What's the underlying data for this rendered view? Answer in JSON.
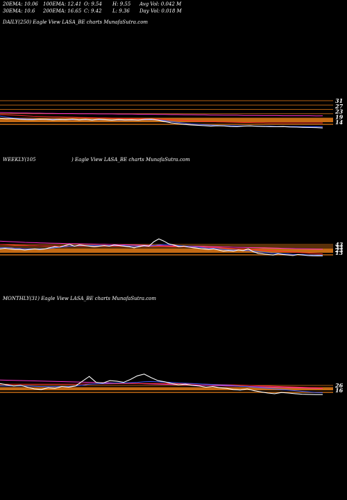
{
  "header": {
    "ema20": "20EMA: 10.06",
    "ema100": "100EMA: 12.41",
    "open": "O: 9.54",
    "high": "H: 9.55",
    "avg_vol": "Avg Vol: 0.042  M",
    "ema30": "30EMA: 10.6",
    "ema200": "200EMA: 16.65",
    "close": "C: 9.42",
    "low": "L: 9.36",
    "day_vol": "Day Vol: 0.018  M"
  },
  "panels": [
    {
      "title": "DAILY(250) Eagle   View  LASA_BE charts MunafaSutra.com"
    },
    {
      "title": "WEEKLY(105",
      "title_right": ") Eagle   View  LASA_BE charts MunafaSutra.com"
    },
    {
      "title": "MONTHLY(31) Eagle   View  LASA_BE charts MunafaSutra.com"
    }
  ],
  "colors": {
    "price": "#ffffff",
    "ema_blue": "#3b5bff",
    "ema_red": "#ff2a2a",
    "ema_magenta": "#ff33cc",
    "ema_orange": "#e07a1a",
    "band": "#c46a14",
    "level_text": "#ffffff"
  },
  "chart_data": [
    {
      "type": "line",
      "name": "daily",
      "level_labels": [
        "31",
        "27",
        "23",
        "19",
        "14"
      ],
      "series": [
        {
          "color_key": "price",
          "values": [
            15.2,
            14.9,
            15.1,
            14.6,
            14.4,
            14.3,
            14.6,
            14.5,
            14.2,
            14.4,
            14.3,
            14.7,
            14.2,
            14.5,
            14.1,
            14.6,
            14.3,
            14.0,
            14.4,
            14.2,
            14.3,
            14.1,
            14.5,
            14.6,
            14.0,
            13.2,
            12.4,
            12.0,
            11.5,
            11.2,
            11.0,
            10.8,
            10.5,
            10.7,
            10.6,
            10.3,
            10.2,
            10.5,
            10.6,
            10.4,
            10.3,
            10.2,
            10.1,
            10.2,
            10.0,
            9.9,
            9.8,
            9.7,
            9.6,
            9.42
          ]
        },
        {
          "color_key": "ema_blue",
          "values": [
            16.5,
            15.8,
            15.3,
            15.0,
            14.8,
            14.7,
            14.6,
            14.6,
            14.5,
            14.5,
            14.4,
            14.4,
            14.4,
            14.3,
            14.3,
            14.3,
            14.3,
            14.2,
            14.2,
            14.2,
            14.2,
            14.2,
            14.3,
            14.3,
            14.2,
            13.8,
            13.2,
            12.7,
            12.3,
            11.9,
            11.6,
            11.3,
            11.1,
            10.9,
            10.8,
            10.7,
            10.6,
            10.6,
            10.6,
            10.5,
            10.4,
            10.4,
            10.3,
            10.3,
            10.2,
            10.2,
            10.1,
            10.1,
            10.1,
            10.06
          ]
        },
        {
          "color_key": "ema_red",
          "values": [
            17.5,
            17.2,
            17.0,
            16.8,
            16.6,
            16.4,
            16.3,
            16.2,
            16.1,
            16.0,
            15.9,
            15.8,
            15.7,
            15.6,
            15.5,
            15.4,
            15.4,
            15.3,
            15.2,
            15.1,
            15.0,
            14.9,
            14.9,
            14.8,
            14.7,
            14.5,
            14.3,
            14.1,
            13.9,
            13.7,
            13.5,
            13.3,
            13.2,
            13.0,
            12.9,
            12.8,
            12.7,
            12.6,
            12.6,
            12.5,
            12.5,
            12.4,
            12.4,
            12.4,
            12.4,
            12.4,
            12.4,
            12.4,
            12.4,
            12.41
          ]
        },
        {
          "color_key": "ema_magenta",
          "values": [
            18.6,
            18.5,
            18.4,
            18.3,
            18.3,
            18.2,
            18.2,
            18.1,
            18.1,
            18.0,
            18.0,
            18.0,
            17.9,
            17.9,
            17.9,
            17.8,
            17.8,
            17.8,
            17.7,
            17.7,
            17.7,
            17.6,
            17.6,
            17.6,
            17.5,
            17.5,
            17.4,
            17.4,
            17.3,
            17.3,
            17.2,
            17.2,
            17.1,
            17.1,
            17.0,
            17.0,
            17.0,
            16.9,
            16.9,
            16.9,
            16.8,
            16.8,
            16.8,
            16.7,
            16.7,
            16.7,
            16.7,
            16.7,
            16.6,
            16.65
          ]
        }
      ],
      "y_range": [
        7,
        34
      ]
    },
    {
      "type": "line",
      "name": "weekly",
      "level_labels": [
        "43",
        "33",
        "23",
        "13"
      ],
      "series": [
        {
          "color_key": "price",
          "values": [
            22,
            23,
            22,
            21,
            21,
            20,
            21,
            22,
            21,
            22,
            24,
            26,
            25,
            28,
            30,
            27,
            29,
            28,
            27,
            26,
            27,
            28,
            27,
            29,
            28,
            27,
            26,
            24,
            26,
            28,
            27,
            35,
            40,
            36,
            31,
            29,
            26,
            27,
            25,
            24,
            23,
            22,
            21,
            22,
            20,
            18,
            19,
            18,
            20,
            19,
            22,
            17,
            14,
            13,
            12,
            11,
            13,
            12,
            11,
            10,
            12,
            11,
            10,
            9.6,
            9.5,
            9.42
          ]
        },
        {
          "color_key": "ema_blue",
          "values": [
            24,
            24,
            24,
            23,
            23,
            22,
            22,
            22,
            22,
            22,
            23,
            24,
            25,
            26,
            27,
            27,
            28,
            28,
            28,
            28,
            28,
            28,
            28,
            28,
            28,
            28,
            27,
            27,
            27,
            27,
            27,
            28,
            29,
            30,
            30,
            29,
            28,
            27,
            27,
            26,
            25,
            24,
            23,
            23,
            22,
            21,
            20,
            20,
            20,
            19,
            19,
            18,
            17,
            16,
            15,
            14,
            14,
            13,
            13,
            12,
            12,
            12,
            11,
            11,
            10.8,
            10.6
          ]
        },
        {
          "color_key": "ema_red",
          "values": [
            30,
            29.6,
            29.2,
            28.8,
            28.5,
            28.2,
            27.9,
            27.7,
            27.5,
            27.3,
            27.2,
            27.1,
            27.0,
            27.0,
            27.0,
            27.0,
            27.0,
            27.0,
            27.0,
            26.9,
            26.9,
            26.9,
            26.9,
            26.9,
            26.9,
            26.8,
            26.8,
            26.7,
            26.6,
            26.5,
            26.4,
            26.4,
            26.5,
            26.5,
            26.4,
            26.3,
            26.1,
            25.9,
            25.7,
            25.4,
            25.1,
            24.8,
            24.5,
            24.2,
            23.9,
            23.5,
            23.1,
            22.7,
            22.3,
            21.9,
            21.5,
            21.0,
            20.4,
            19.8,
            19.2,
            18.6,
            18.0,
            17.4,
            16.8,
            16.2,
            15.6,
            15.0,
            14.5,
            14.0,
            13.5,
            13.0
          ]
        },
        {
          "color_key": "ema_magenta",
          "values": [
            36,
            35.5,
            35,
            34.6,
            34.2,
            33.8,
            33.5,
            33.2,
            32.9,
            32.6,
            32.4,
            32.2,
            32,
            31.8,
            31.6,
            31.4,
            31.2,
            31,
            30.8,
            30.6,
            30.4,
            30.2,
            30,
            29.8,
            29.6,
            29.4,
            29.2,
            29,
            28.8,
            28.6,
            28.4,
            28.2,
            28,
            27.8,
            27.6,
            27.4,
            27.2,
            27,
            26.8,
            26.6,
            26.4,
            26.2,
            26,
            25.8,
            25.6,
            25.4,
            25.2,
            25,
            24.8,
            24.6,
            24.4,
            24.2,
            24,
            23.8,
            23.6,
            23.4,
            23.2,
            23,
            22.8,
            22.6,
            22.4,
            22.2,
            22,
            21.8,
            21.6,
            21.4
          ]
        }
      ],
      "y_range": [
        5,
        70
      ]
    },
    {
      "type": "line",
      "name": "monthly",
      "level_labels": [
        "26",
        "16"
      ],
      "series": [
        {
          "color_key": "price",
          "values": [
            28,
            26,
            24,
            25,
            22,
            19,
            18,
            21,
            20,
            23,
            22,
            24,
            32,
            40,
            30,
            29,
            33,
            32,
            30,
            35,
            41,
            44,
            38,
            33,
            31,
            28,
            26,
            27,
            25,
            24,
            22,
            23,
            21,
            20,
            18,
            17,
            19,
            16,
            14,
            12,
            11,
            13,
            12,
            11,
            10,
            9.8,
            9.5,
            9.42
          ]
        },
        {
          "color_key": "ema_blue",
          "values": [
            24,
            24,
            24,
            24,
            24,
            23.5,
            23,
            23,
            23,
            23,
            23,
            24,
            25,
            27,
            27.5,
            28,
            28.5,
            29,
            29,
            29.5,
            30,
            31,
            31.5,
            31,
            30.5,
            30,
            29,
            28.5,
            28,
            27.5,
            27,
            26.5,
            26,
            25.5,
            24.5,
            23.5,
            23,
            22,
            21,
            20,
            19,
            18,
            17,
            16,
            15,
            14,
            13,
            12.5
          ]
        },
        {
          "color_key": "ema_red",
          "values": [
            27,
            27,
            27,
            27,
            27,
            27,
            27,
            27,
            27,
            27,
            27,
            27,
            27.2,
            27.4,
            27.5,
            27.6,
            27.7,
            27.8,
            27.9,
            28,
            28,
            28.1,
            28.2,
            28.2,
            28.1,
            28,
            27.8,
            27.6,
            27.4,
            27.2,
            27,
            26.7,
            26.4,
            26.1,
            25.8,
            25.4,
            25,
            24.6,
            24.2,
            23.8,
            23.4,
            23,
            22.6,
            22.2,
            21.8,
            21.4,
            21,
            20.6
          ]
        },
        {
          "color_key": "ema_magenta",
          "values": [
            34,
            33.7,
            33.4,
            33.1,
            32.8,
            32.5,
            32.2,
            31.9,
            31.6,
            31.3,
            31,
            30.7,
            30.4,
            30.1,
            29.8,
            29.5,
            29.2,
            28.9,
            28.6,
            28.3,
            28,
            27.7,
            27.4,
            27.1,
            26.8,
            26.5,
            26.2,
            25.9,
            25.6,
            25.3,
            25,
            24.7,
            24.4,
            24.1,
            23.8,
            23.5,
            23.2,
            22.9,
            22.6,
            22.3,
            22,
            21.7,
            21.4,
            21.1,
            20.8,
            20.5,
            20.2,
            19.9
          ]
        }
      ],
      "y_range": [
        5,
        60
      ]
    }
  ]
}
